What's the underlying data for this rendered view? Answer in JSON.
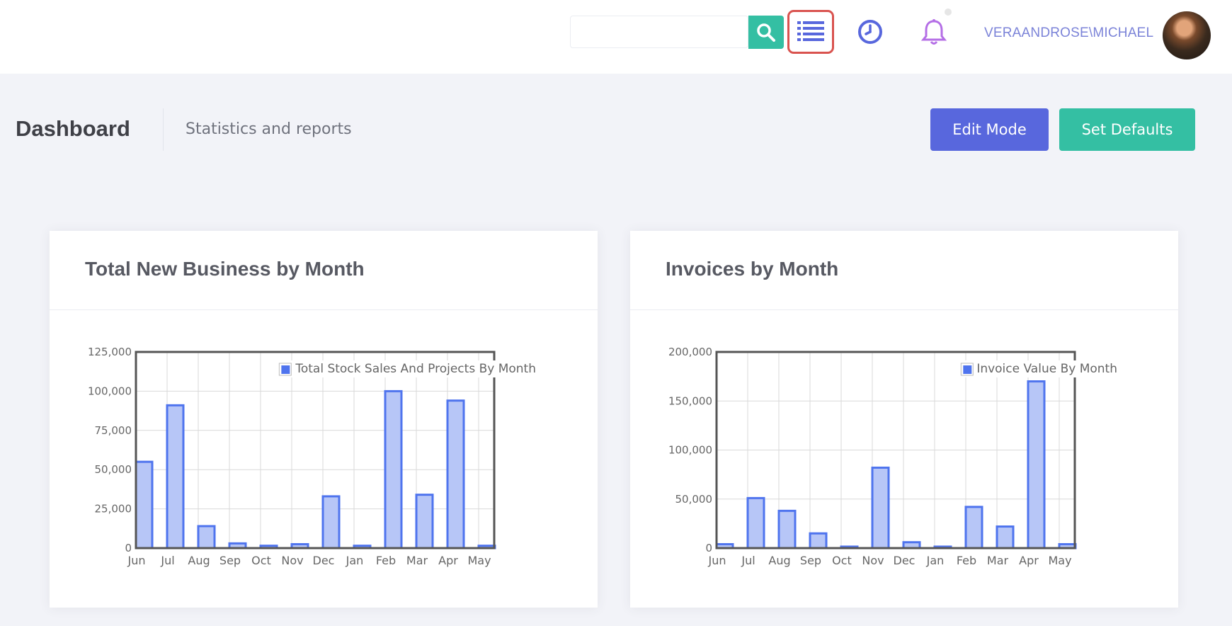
{
  "header": {
    "search": {
      "value": "",
      "placeholder": ""
    },
    "username": "VERAANDROSE\\MICHAEL",
    "icons": [
      "search-icon",
      "list-icon",
      "clock-icon",
      "bell-icon"
    ]
  },
  "subheader": {
    "title": "Dashboard",
    "subtitle": "Statistics and reports",
    "edit_mode_label": "Edit Mode",
    "set_defaults_label": "Set Defaults"
  },
  "colors": {
    "accent": "#5867dd",
    "success": "#34bfa3",
    "bar_fill": "#b7c6f7",
    "bar_stroke": "#4f74ee",
    "highlight": "#d9534f"
  },
  "chart_data": [
    {
      "type": "bar",
      "title": "Total New Business by Month",
      "legend": "Total Stock Sales And Projects By Month",
      "legend_position": "top-right",
      "categories": [
        "Jun",
        "Jul",
        "Aug",
        "Sep",
        "Oct",
        "Nov",
        "Dec",
        "Jan",
        "Feb",
        "Mar",
        "Apr",
        "May"
      ],
      "values": [
        55000,
        91000,
        14000,
        3000,
        1500,
        2500,
        33000,
        1500,
        100000,
        34000,
        94000,
        1500
      ],
      "ylim": [
        0,
        125000
      ],
      "yticks": [
        0,
        25000,
        50000,
        75000,
        100000,
        125000
      ],
      "ytick_labels": [
        "0",
        "25,000",
        "50,000",
        "75,000",
        "100,000",
        "125,000"
      ],
      "grid": true
    },
    {
      "type": "bar",
      "title": "Invoices by Month",
      "legend": "Invoice Value By Month",
      "legend_position": "top-right",
      "categories": [
        "Jun",
        "Jul",
        "Aug",
        "Sep",
        "Oct",
        "Nov",
        "Dec",
        "Jan",
        "Feb",
        "Mar",
        "Apr",
        "May"
      ],
      "values": [
        4000,
        51000,
        38000,
        15000,
        1500,
        82000,
        6000,
        1500,
        42000,
        22000,
        170000,
        4000
      ],
      "ylim": [
        0,
        200000
      ],
      "yticks": [
        0,
        50000,
        100000,
        150000,
        200000
      ],
      "ytick_labels": [
        "0",
        "50,000",
        "100,000",
        "150,000",
        "200,000"
      ],
      "grid": true
    }
  ]
}
